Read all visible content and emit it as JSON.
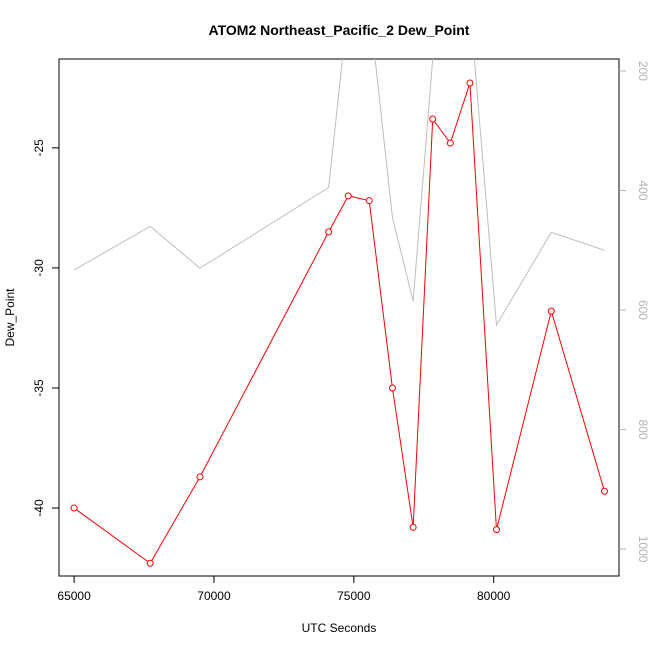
{
  "chart_data": {
    "type": "line",
    "title": "ATOM2 Northeast_Pacific_2 Dew_Point",
    "xlabel": "UTC Seconds",
    "ylabel": "Dew_Point",
    "xlim": [
      64460,
      84480
    ],
    "ylim": [
      -42.83,
      -21.3
    ],
    "y2lim": [
      1045,
      180
    ],
    "x_ticks": [
      65000,
      70000,
      75000,
      80000
    ],
    "y_ticks": [
      -40,
      -35,
      -30,
      -25
    ],
    "y2_ticks": [
      200,
      400,
      600,
      800,
      1000
    ],
    "grid": false,
    "colors": {
      "dew_point": "#ff0000",
      "pressure": "#bebebe"
    },
    "series": [
      {
        "axis": "left",
        "color": "#ff0000",
        "marker": "open-circle",
        "x": [
          65000,
          67720,
          69500,
          74100,
          74800,
          75550,
          76380,
          77120,
          77820,
          78450,
          79150,
          80100,
          82060,
          83960
        ],
        "values": [
          -40.0,
          -42.3,
          -38.7,
          -28.5,
          -27.0,
          -27.2,
          -35.0,
          -40.8,
          -23.8,
          -24.8,
          -22.3,
          -40.9,
          -31.8,
          -39.3
        ]
      },
      {
        "axis": "right",
        "color": "#bebebe",
        "marker": "none",
        "x": [
          65000,
          67720,
          69500,
          74100,
          74800,
          75550,
          76380,
          77120,
          77820,
          78450,
          79150,
          80100,
          82060,
          83960
        ],
        "values": [
          533,
          460,
          530,
          395,
          90,
          90,
          445,
          585,
          180,
          90,
          90,
          625,
          470,
          500
        ]
      }
    ]
  }
}
